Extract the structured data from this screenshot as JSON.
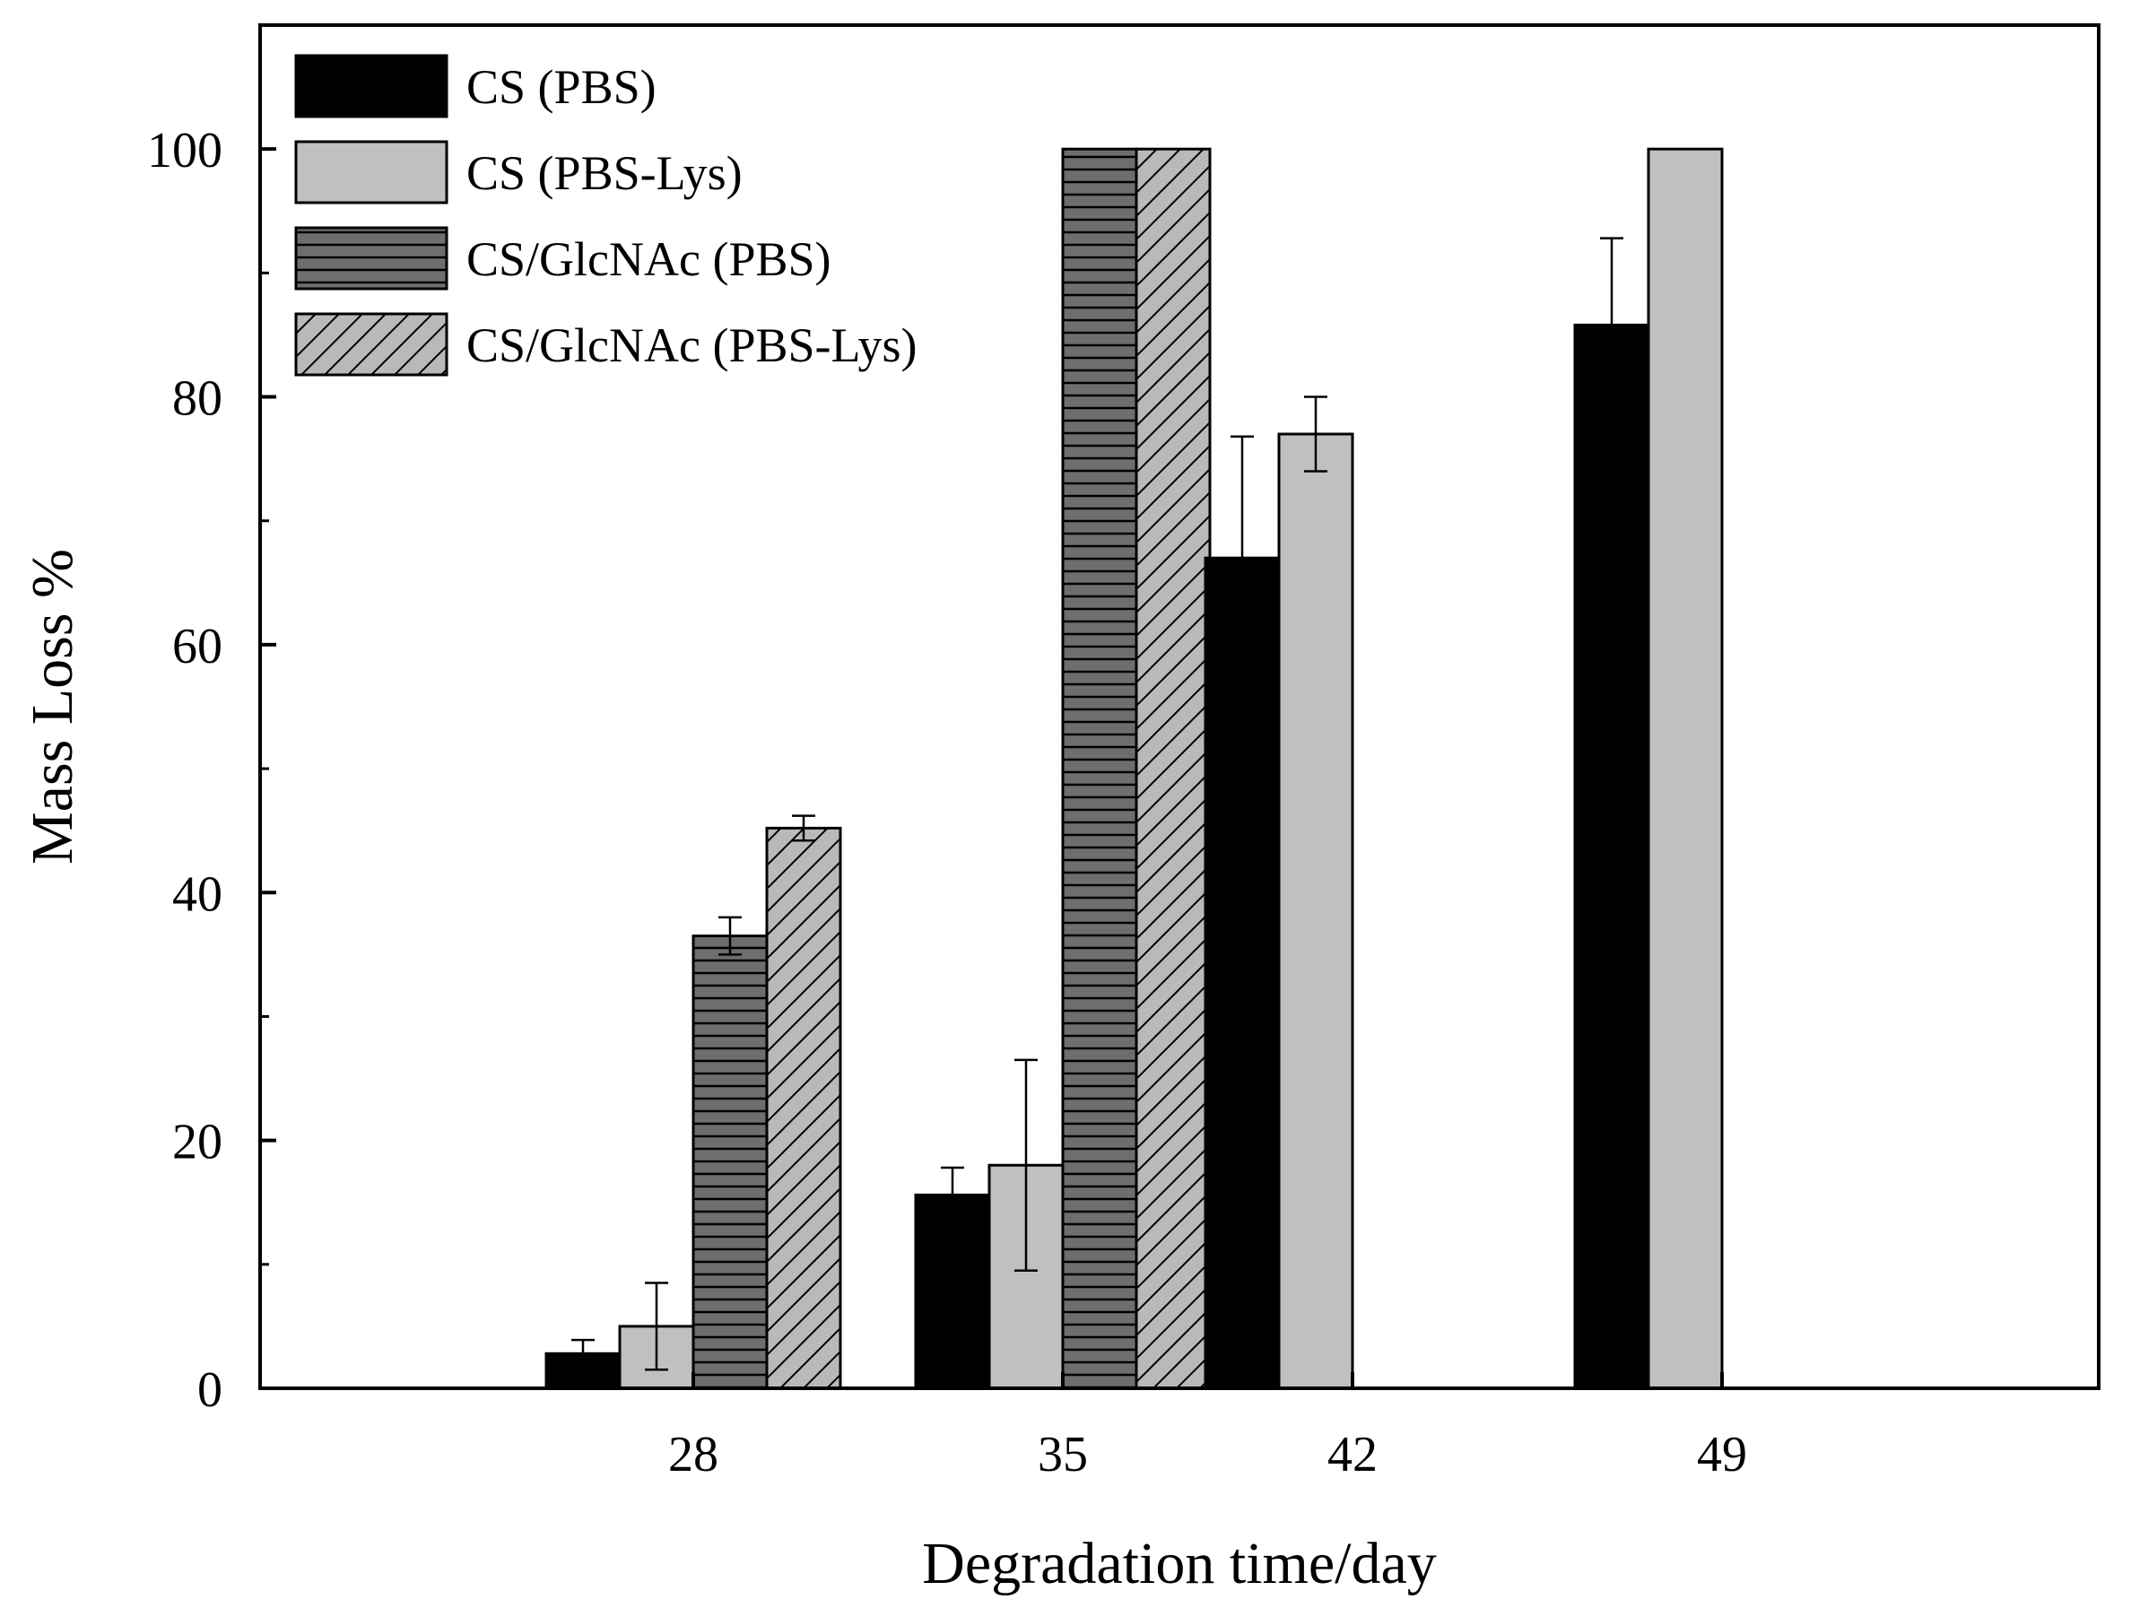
{
  "chart_data": {
    "type": "bar",
    "title": "",
    "xlabel": "Degradation time/day",
    "ylabel": "Mass Loss %",
    "ylim": [
      0,
      110
    ],
    "yticks": [
      "0",
      "20",
      "40",
      "60",
      "80",
      "100"
    ],
    "categories": [
      "28",
      "35",
      "42",
      "49"
    ],
    "legend_position": "top-left",
    "series": [
      {
        "name": "CS (PBS)",
        "pattern": "solid-black",
        "values": [
          2.8,
          15.6,
          67.0,
          85.8
        ],
        "errors": [
          1.1,
          2.2,
          9.8,
          7.0
        ]
      },
      {
        "name": "CS (PBS-Lys)",
        "pattern": "solid-gray",
        "values": [
          5.0,
          18.0,
          77.0,
          100.0
        ],
        "errors": [
          3.5,
          8.5,
          3.0,
          null
        ]
      },
      {
        "name": "CS/GlcNAc (PBS)",
        "pattern": "horizontal-lines",
        "values": [
          36.5,
          100.0,
          null,
          null
        ],
        "errors": [
          1.5,
          null,
          null,
          null
        ]
      },
      {
        "name": "CS/GlcNAc (PBS-Lys)",
        "pattern": "diagonal-hatch",
        "values": [
          45.2,
          100.0,
          null,
          null
        ],
        "errors": [
          1.0,
          null,
          null,
          null
        ]
      }
    ],
    "colors": {
      "black": "#000000",
      "light_gray": "#c0c0c0",
      "dark_gray": "#6e6e6e",
      "hatch_gray": "#b9b9b9"
    }
  }
}
